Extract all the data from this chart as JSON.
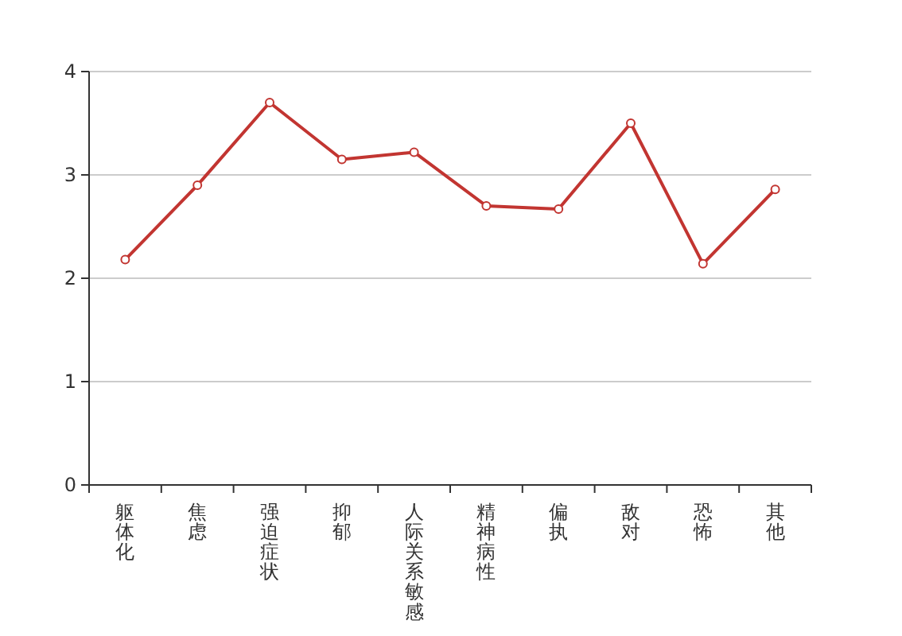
{
  "chart_data": {
    "type": "line",
    "categories": [
      "躯体化",
      "焦虑",
      "强迫症状",
      "抑郁",
      "人际关系敏感",
      "精神病性",
      "偏执",
      "敌对",
      "恐怖",
      "其他"
    ],
    "series": [
      {
        "color": "#c23531",
        "values": [
          2.18,
          2.9,
          3.7,
          3.15,
          3.22,
          2.7,
          2.67,
          3.5,
          2.14,
          2.86
        ]
      }
    ],
    "ylim": [
      0,
      4
    ],
    "yticks": [
      0,
      1,
      2,
      3,
      4
    ],
    "grid": "y",
    "marker": "circle"
  }
}
